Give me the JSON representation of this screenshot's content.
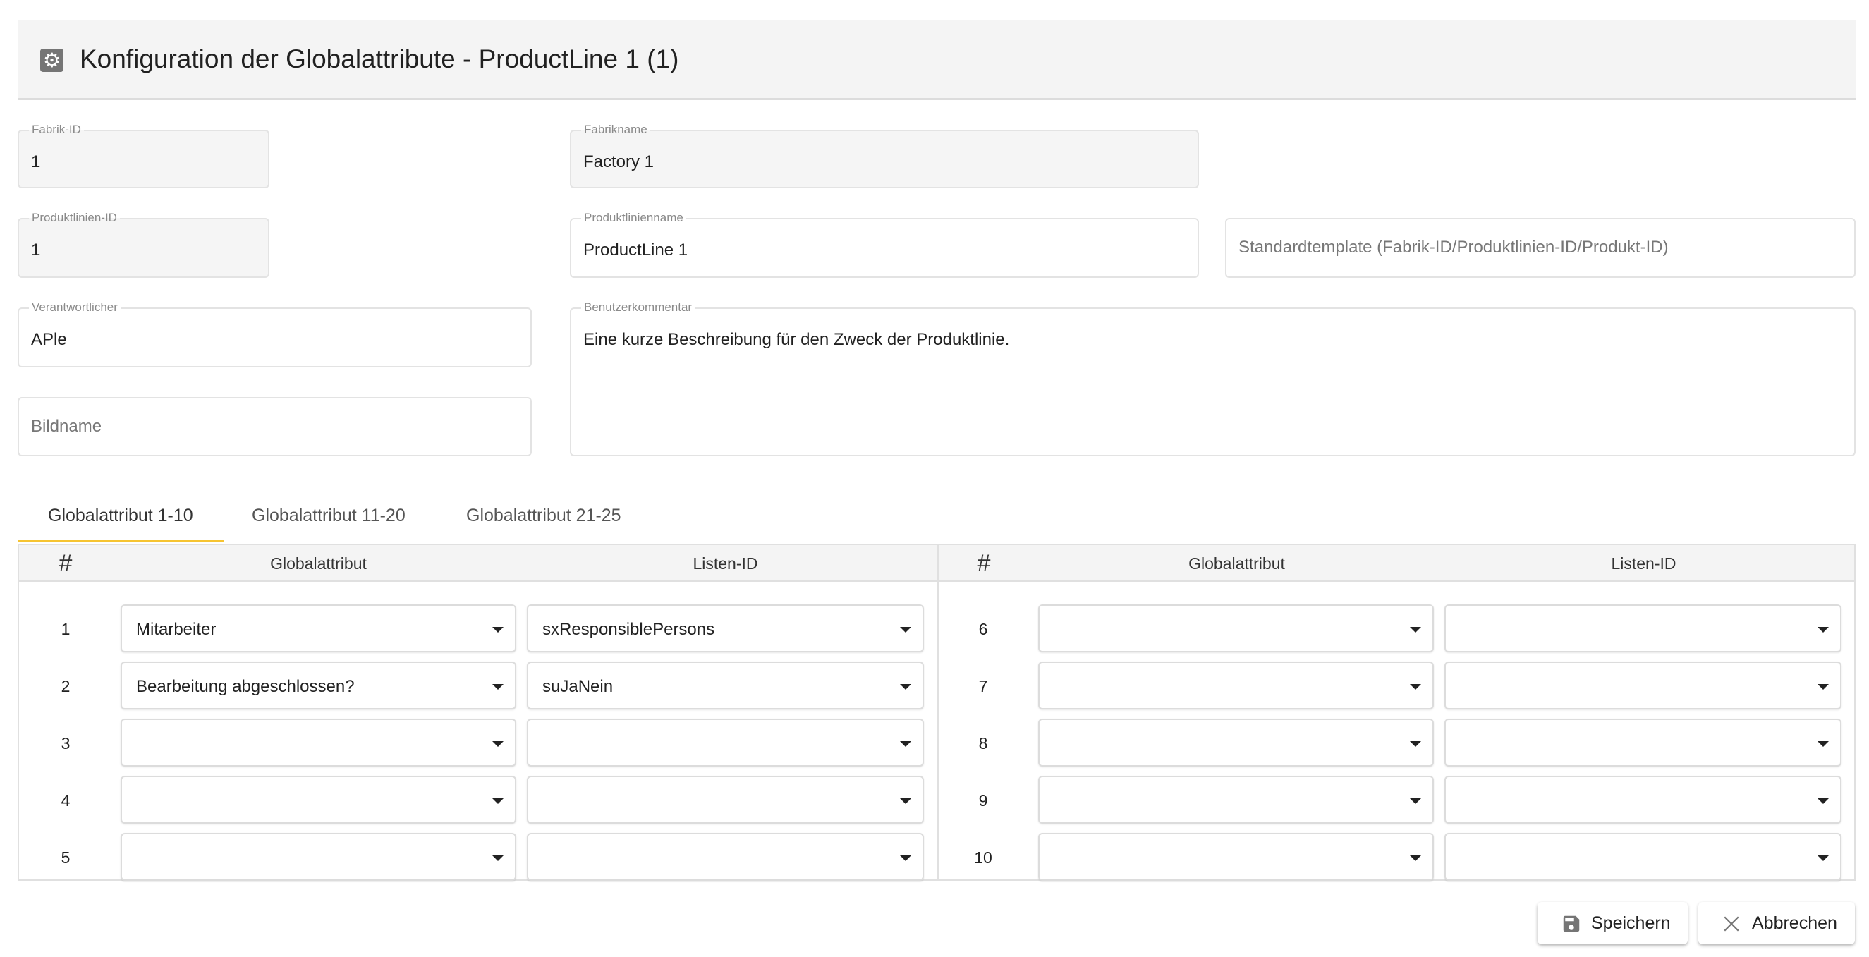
{
  "header": {
    "title": "Konfiguration der Globalattribute - ProductLine 1 (1)",
    "icon": "gear-icon"
  },
  "fields": {
    "fabrik_id": {
      "label": "Fabrik-ID",
      "value": "1"
    },
    "fabrikname": {
      "label": "Fabrikname",
      "value": "Factory 1"
    },
    "produktlinien_id": {
      "label": "Produktlinien-ID",
      "value": "1"
    },
    "produktlinienname": {
      "label": "Produktlinienname",
      "value": "ProductLine 1"
    },
    "standardtemplate": {
      "placeholder": "Standardtemplate (Fabrik-ID/Produktlinien-ID/Produkt-ID)"
    },
    "verantwortlicher": {
      "label": "Verantwortlicher",
      "value": "APle"
    },
    "benutzerkommentar": {
      "label": "Benutzerkommentar",
      "value": "Eine kurze Beschreibung für den Zweck der Produktlinie."
    },
    "bildname": {
      "placeholder": "Bildname"
    }
  },
  "tabs": [
    {
      "label": "Globalattribut 1-10",
      "active": true
    },
    {
      "label": "Globalattribut 11-20"
    },
    {
      "label": "Globalattribut 21-25"
    }
  ],
  "table": {
    "headers": {
      "num": "#",
      "attr": "Globalattribut",
      "list": "Listen-ID"
    },
    "rows": [
      {
        "num": "1",
        "attr": "Mitarbeiter",
        "list": "sxResponsiblePersons"
      },
      {
        "num": "2",
        "attr": "Bearbeitung abgeschlossen?",
        "list": "suJaNein"
      },
      {
        "num": "3",
        "attr": "",
        "list": ""
      },
      {
        "num": "4",
        "attr": "",
        "list": ""
      },
      {
        "num": "5",
        "attr": "",
        "list": ""
      },
      {
        "num": "6",
        "attr": "",
        "list": ""
      },
      {
        "num": "7",
        "attr": "",
        "list": ""
      },
      {
        "num": "8",
        "attr": "",
        "list": ""
      },
      {
        "num": "9",
        "attr": "",
        "list": ""
      },
      {
        "num": "10",
        "attr": "",
        "list": ""
      }
    ]
  },
  "buttons": {
    "save": "Speichern",
    "cancel": "Abbrechen"
  },
  "colors": {
    "accent": "#f6c431",
    "header_bg": "#f4f4f4"
  }
}
